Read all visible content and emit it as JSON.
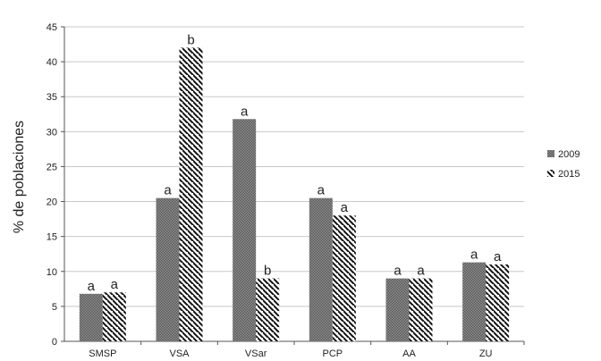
{
  "chart_data": {
    "type": "bar",
    "title": "",
    "xlabel": "",
    "ylabel": "% de poblaciones",
    "ylim": [
      0,
      45
    ],
    "yticks": [
      0,
      5,
      10,
      15,
      20,
      25,
      30,
      35,
      40,
      45
    ],
    "grid": true,
    "legend_position": "right",
    "categories": [
      "SMSP",
      "VSA",
      "VSar",
      "PCP",
      "AA",
      "ZU"
    ],
    "series": [
      {
        "name": "2009",
        "pattern": "dotted-gray",
        "color": "#7a7a7a",
        "values": [
          6.8,
          20.5,
          31.8,
          20.5,
          9,
          11.3
        ],
        "labels": [
          "a",
          "a",
          "a",
          "a",
          "a",
          "a"
        ]
      },
      {
        "name": "2015",
        "pattern": "diagonal-stripes",
        "color": "#222222",
        "values": [
          7,
          42,
          9,
          18,
          9,
          11
        ],
        "labels": [
          "a",
          "b",
          "b",
          "a",
          "a",
          "a"
        ]
      }
    ]
  }
}
